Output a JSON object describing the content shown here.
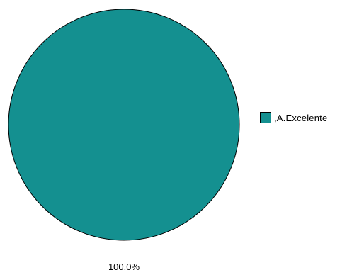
{
  "chart_data": {
    "type": "pie",
    "title": "",
    "categories": [
      ",A.Excelente"
    ],
    "values": [
      100.0
    ],
    "value_labels": [
      "100.0%"
    ],
    "colors": [
      "#149090"
    ],
    "legend_position": "right"
  }
}
